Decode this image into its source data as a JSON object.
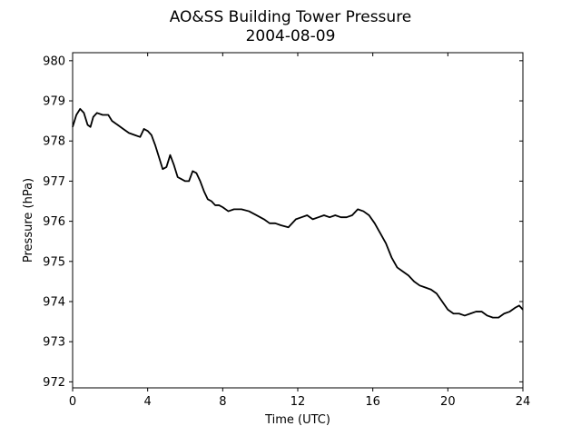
{
  "chart_data": {
    "type": "line",
    "title": "AO&SS Building Tower Pressure",
    "subtitle": "2004-08-09",
    "xlabel": "Time (UTC)",
    "ylabel": "Pressure (hPa)",
    "xlim": [
      0,
      24
    ],
    "ylim": [
      971.85,
      980.2
    ],
    "xticks": [
      0,
      4,
      8,
      12,
      16,
      20,
      24
    ],
    "yticks": [
      972,
      973,
      974,
      975,
      976,
      977,
      978,
      979,
      980
    ],
    "grid": false,
    "line_color": "#000000",
    "series": [
      {
        "x": [
          0.0,
          0.2,
          0.4,
          0.6,
          0.8,
          0.95,
          1.1,
          1.3,
          1.6,
          1.9,
          2.1,
          2.4,
          2.7,
          3.0,
          3.3,
          3.6,
          3.8,
          4.0,
          4.2,
          4.4,
          4.6,
          4.8,
          5.0,
          5.2,
          5.4,
          5.6,
          5.8,
          6.0,
          6.2,
          6.4,
          6.6,
          6.8,
          7.0,
          7.2,
          7.4,
          7.6,
          7.8,
          8.0,
          8.3,
          8.6,
          9.0,
          9.4,
          9.8,
          10.2,
          10.5,
          10.8,
          11.1,
          11.5,
          11.9,
          12.2,
          12.5,
          12.8,
          13.1,
          13.4,
          13.7,
          14.0,
          14.3,
          14.6,
          14.9,
          15.2,
          15.5,
          15.8,
          16.1,
          16.4,
          16.7,
          17.0,
          17.3,
          17.6,
          17.9,
          18.2,
          18.5,
          18.8,
          19.1,
          19.4,
          19.7,
          20.0,
          20.3,
          20.6,
          20.9,
          21.2,
          21.5,
          21.8,
          22.1,
          22.4,
          22.7,
          23.0,
          23.3,
          23.6,
          23.8,
          24.0
        ],
        "values": [
          978.35,
          978.65,
          978.8,
          978.7,
          978.4,
          978.35,
          978.6,
          978.7,
          978.65,
          978.65,
          978.5,
          978.4,
          978.3,
          978.2,
          978.15,
          978.1,
          978.3,
          978.25,
          978.15,
          977.9,
          977.6,
          977.3,
          977.35,
          977.65,
          977.4,
          977.1,
          977.05,
          977.0,
          977.0,
          977.25,
          977.2,
          977.0,
          976.75,
          976.55,
          976.5,
          976.4,
          976.4,
          976.35,
          976.25,
          976.3,
          976.3,
          976.25,
          976.15,
          976.05,
          975.95,
          975.95,
          975.9,
          975.85,
          976.05,
          976.1,
          976.15,
          976.05,
          976.1,
          976.15,
          976.1,
          976.15,
          976.1,
          976.1,
          976.15,
          976.3,
          976.25,
          976.15,
          975.95,
          975.7,
          975.45,
          975.1,
          974.85,
          974.75,
          974.65,
          974.5,
          974.4,
          974.35,
          974.3,
          974.2,
          974.0,
          973.8,
          973.7,
          973.7,
          973.65,
          973.7,
          973.75,
          973.75,
          973.65,
          973.6,
          973.6,
          973.7,
          973.75,
          973.85,
          973.9,
          973.8
        ]
      }
    ]
  }
}
